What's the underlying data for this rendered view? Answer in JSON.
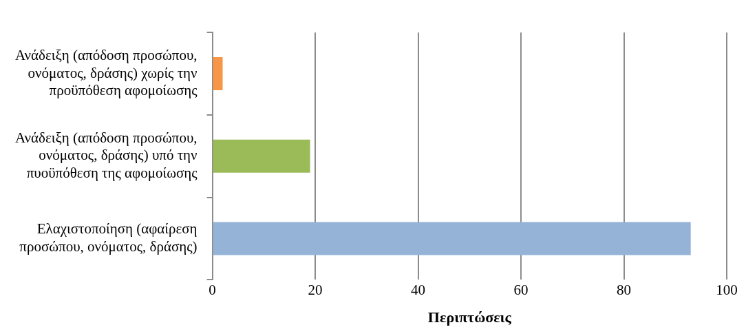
{
  "chart_data": {
    "type": "bar",
    "orientation": "horizontal",
    "xlabel": "Περιπτώσεις",
    "categories": [
      "Ανάδειξη (απόδοση προσώπου, ονόματος, δράσης) χωρίς την προϋπόθεση αφομοίωσης",
      "Ανάδειξη (απόδοση προσώπου, ονόματος, δράσης) υπό την πυοϋπόθεση της αφομοίωσης",
      "Ελαχιστοποίηση (αφαίρεση προσώπου, ονόματος, δράσης)"
    ],
    "values": [
      2,
      19,
      93
    ],
    "colors": [
      "#f79646",
      "#9bbb59",
      "#95b3d7"
    ],
    "xlim": [
      0,
      100
    ],
    "xticks": [
      0,
      20,
      40,
      60,
      80,
      100
    ],
    "grid": "x",
    "legend": false
  }
}
